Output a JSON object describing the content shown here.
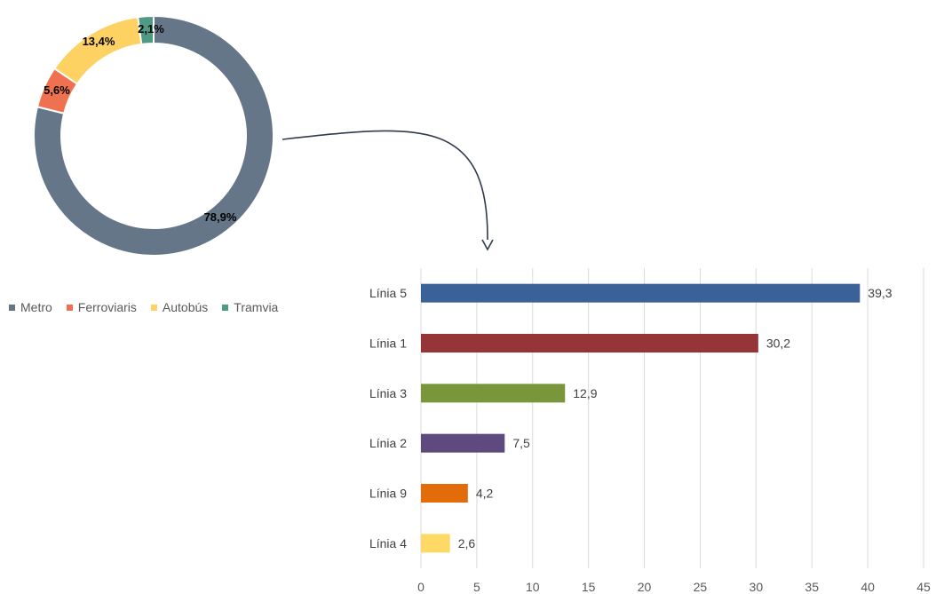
{
  "chart_data": [
    {
      "type": "pie",
      "donut": true,
      "labels": [
        "Metro",
        "Ferroviaris",
        "Autobús",
        "Tramvia"
      ],
      "values": [
        78.9,
        5.6,
        13.4,
        2.1
      ],
      "value_labels": [
        "78,9%",
        "5,6%",
        "13,4%",
        "2,1%"
      ],
      "colors": [
        "#657688",
        "#F0714F",
        "#FDD262",
        "#4E9A84"
      ],
      "legend_position": "bottom-left"
    },
    {
      "type": "bar",
      "orientation": "horizontal",
      "categories": [
        "Línia 5",
        "Línia 1",
        "Línia 3",
        "Línia 2",
        "Línia 9",
        "Línia 4"
      ],
      "values": [
        39.3,
        30.2,
        12.9,
        7.5,
        4.2,
        2.6
      ],
      "value_labels": [
        "39,3",
        "30,2",
        "12,9",
        "7,5",
        "4,2",
        "2,6"
      ],
      "colors": [
        "#3A6298",
        "#953537",
        "#7A963B",
        "#5E4A7E",
        "#E36C0A",
        "#FFD966"
      ],
      "xlim": [
        0,
        45
      ],
      "xticks": [
        0,
        5,
        10,
        15,
        20,
        25,
        30,
        35,
        40,
        45
      ],
      "grid": true
    }
  ]
}
